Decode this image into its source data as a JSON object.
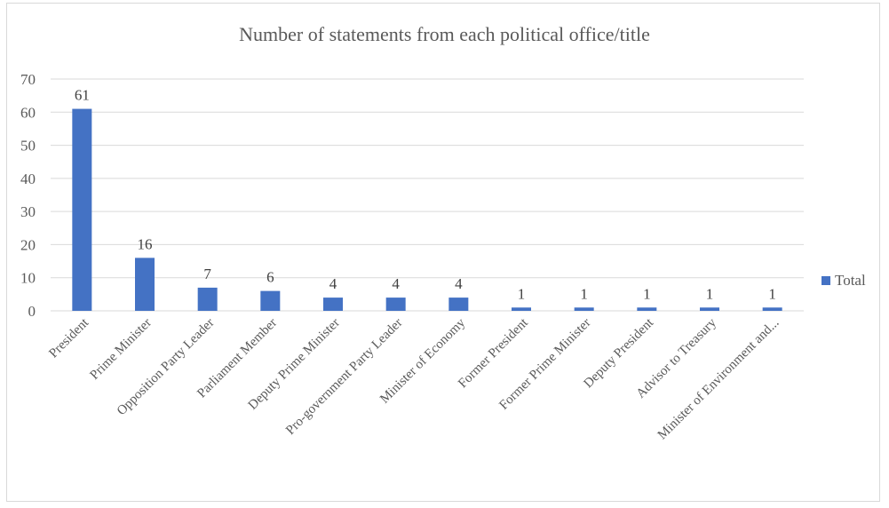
{
  "chart_data": {
    "type": "bar",
    "title": "Number of statements from each political office/title",
    "categories": [
      "President",
      "Prime Minister",
      "Opposition Party Leader",
      "Parliament Member",
      "Deputy Prime Minister",
      "Pro-government Party Leader",
      "Minister of Economy",
      "Former President",
      "Former Prime Minister",
      "Deputy President",
      "Advisor to Treasury",
      "Minister of Environment and..."
    ],
    "series": [
      {
        "name": "Total",
        "values": [
          61,
          16,
          7,
          6,
          4,
          4,
          4,
          1,
          1,
          1,
          1,
          1
        ]
      }
    ],
    "data_labels": true,
    "yticks": [
      0,
      10,
      20,
      30,
      40,
      50,
      60,
      70
    ],
    "ylim": [
      0,
      70
    ],
    "grid": true,
    "legend_position": "right",
    "colors": {
      "bar": "#4472c4",
      "grid": "#d9d9d9",
      "text": "#595959"
    }
  }
}
